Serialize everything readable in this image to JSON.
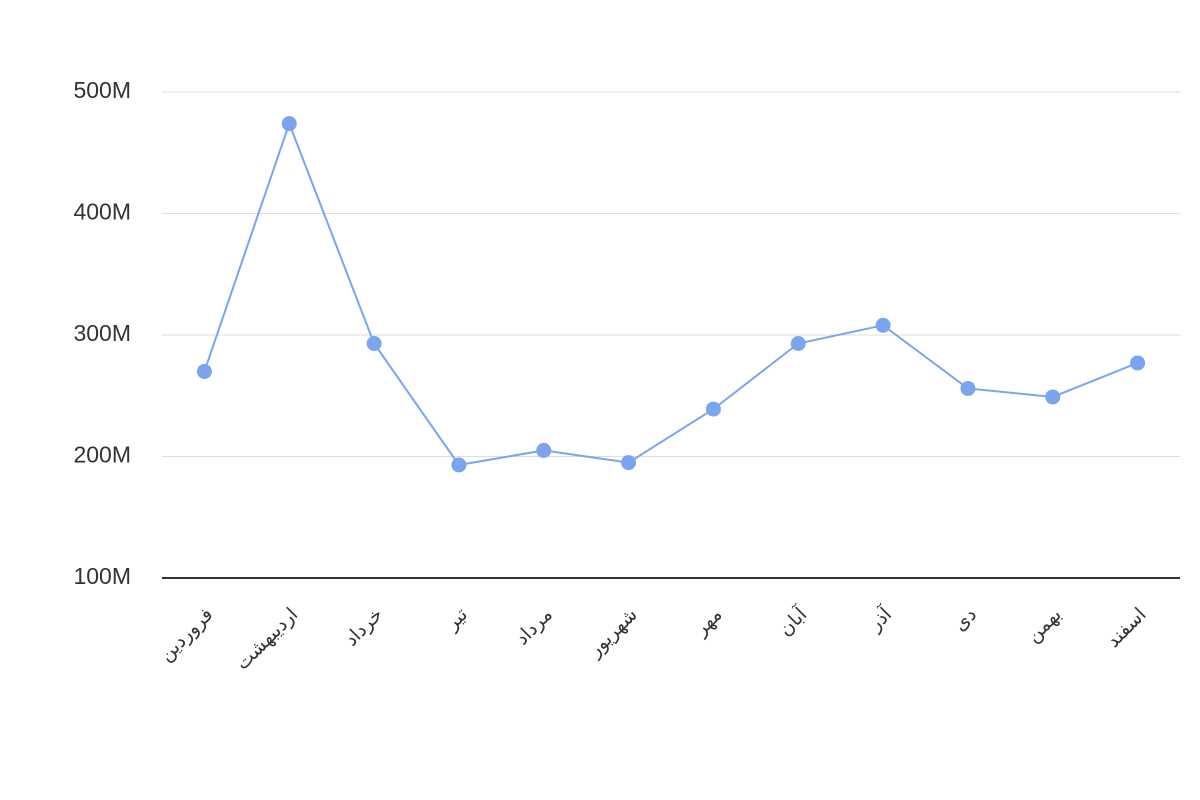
{
  "chart_data": {
    "type": "line",
    "categories": [
      "فروردین",
      "اردیبهشت",
      "خرداد",
      "تیر",
      "مرداد",
      "شهریور",
      "مهر",
      "آبان",
      "آذر",
      "دی",
      "بهمن",
      "اسفند"
    ],
    "series": [
      {
        "color": "#7ba4ef",
        "values": [
          270000000,
          474000000,
          293000000,
          193000000,
          205000000,
          195000000,
          239000000,
          293000000,
          308000000,
          256000000,
          249000000,
          277000000
        ]
      }
    ],
    "ylim": [
      100000000,
      500000000
    ],
    "yticks": [
      {
        "value": 100000000,
        "label": "100M"
      },
      {
        "value": 200000000,
        "label": "200M"
      },
      {
        "value": 300000000,
        "label": "300M"
      },
      {
        "value": 400000000,
        "label": "400M"
      },
      {
        "value": 500000000,
        "label": "500M"
      }
    ],
    "grid": true
  }
}
